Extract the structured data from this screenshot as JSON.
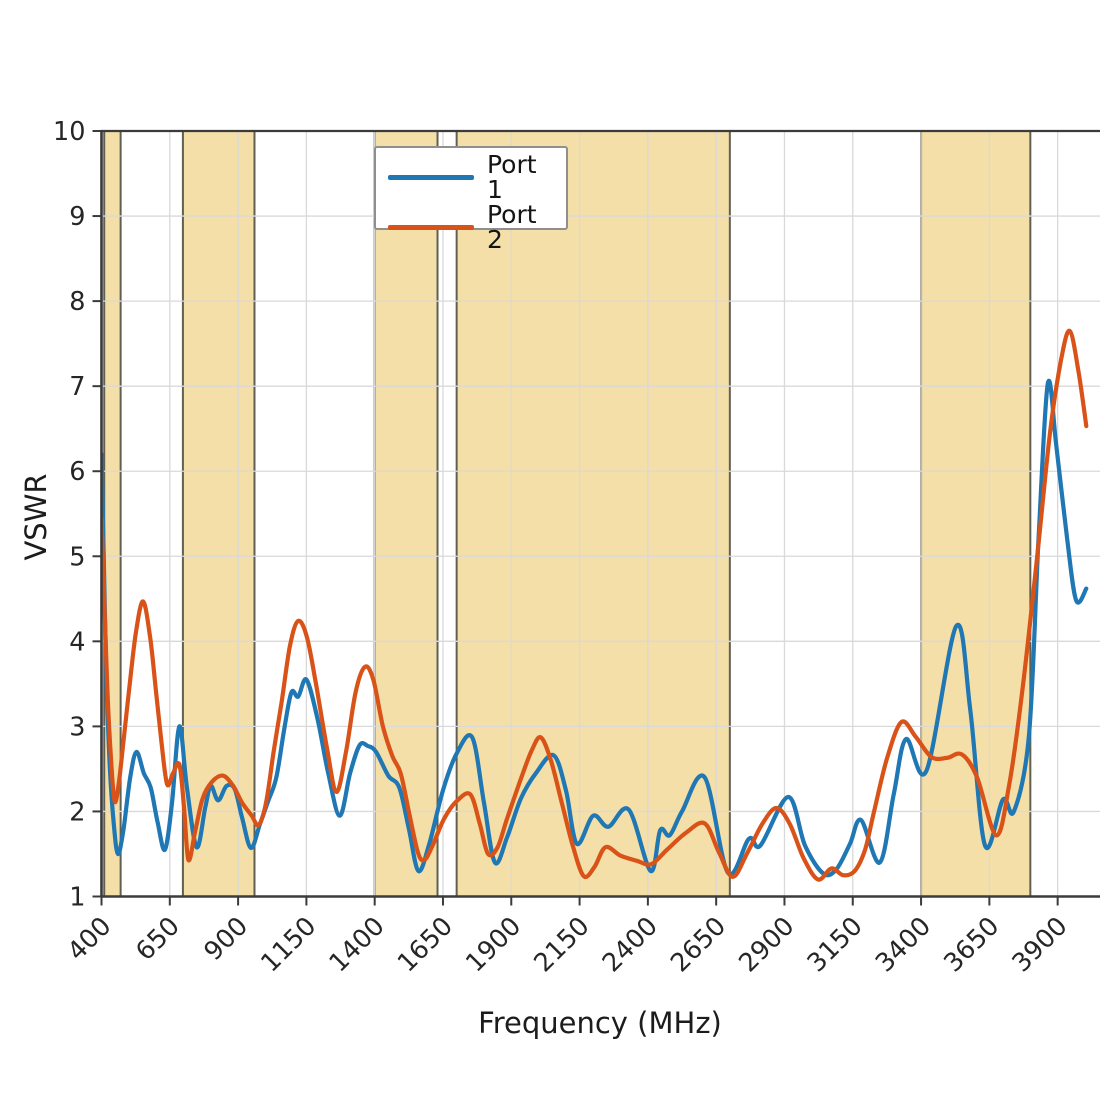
{
  "figure": {
    "xlabel": "Frequency (MHz)",
    "ylabel": "VSWR",
    "background_color": "#ffffff",
    "grid_color": "#d9d9d9",
    "spine_color": "#3b3b3b",
    "tick_label_color": "#262626"
  },
  "legend": {
    "items": [
      {
        "label": "Port 1",
        "color": "#1f77b4"
      },
      {
        "label": "Port 2",
        "color": "#d95319"
      }
    ]
  },
  "chart_data": {
    "type": "line",
    "title": "",
    "xlabel": "Frequency (MHz)",
    "ylabel": "VSWR",
    "xlim": [
      400,
      4055
    ],
    "ylim": [
      1,
      10
    ],
    "xticks": [
      400,
      650,
      900,
      1150,
      1400,
      1650,
      1900,
      2150,
      2400,
      2650,
      2900,
      3150,
      3400,
      3650,
      3900
    ],
    "yticks": [
      1,
      2,
      3,
      4,
      5,
      6,
      7,
      8,
      9,
      10
    ],
    "grid": true,
    "x_tick_rotation_deg": 45,
    "legend_position": "upper center-left",
    "band_color": "#f5dfa8",
    "band_edge_color": "#5f5f54",
    "shaded_bands_mhz": [
      [
        410,
        470
      ],
      [
        698,
        960
      ],
      [
        1400,
        1630
      ],
      [
        1700,
        2700
      ],
      [
        3400,
        3800
      ]
    ],
    "series": [
      {
        "name": "Port 1",
        "color": "#1f77b4",
        "points": [
          [
            400,
            6.2
          ],
          [
            408,
            5.0
          ],
          [
            418,
            3.6
          ],
          [
            430,
            2.55
          ],
          [
            445,
            1.85
          ],
          [
            460,
            1.5
          ],
          [
            480,
            1.78
          ],
          [
            505,
            2.4
          ],
          [
            528,
            2.7
          ],
          [
            555,
            2.45
          ],
          [
            580,
            2.28
          ],
          [
            605,
            1.88
          ],
          [
            632,
            1.55
          ],
          [
            658,
            2.1
          ],
          [
            685,
            3.0
          ],
          [
            712,
            2.3
          ],
          [
            748,
            1.58
          ],
          [
            780,
            2.05
          ],
          [
            800,
            2.3
          ],
          [
            827,
            2.13
          ],
          [
            858,
            2.3
          ],
          [
            888,
            2.26
          ],
          [
            915,
            1.92
          ],
          [
            947,
            1.57
          ],
          [
            980,
            1.85
          ],
          [
            1010,
            2.12
          ],
          [
            1040,
            2.4
          ],
          [
            1068,
            2.95
          ],
          [
            1095,
            3.4
          ],
          [
            1120,
            3.35
          ],
          [
            1150,
            3.55
          ],
          [
            1190,
            3.1
          ],
          [
            1230,
            2.45
          ],
          [
            1272,
            1.95
          ],
          [
            1310,
            2.45
          ],
          [
            1345,
            2.78
          ],
          [
            1375,
            2.77
          ],
          [
            1405,
            2.7
          ],
          [
            1450,
            2.42
          ],
          [
            1490,
            2.28
          ],
          [
            1525,
            1.8
          ],
          [
            1560,
            1.3
          ],
          [
            1600,
            1.62
          ],
          [
            1650,
            2.25
          ],
          [
            1700,
            2.68
          ],
          [
            1757,
            2.87
          ],
          [
            1800,
            2.1
          ],
          [
            1840,
            1.4
          ],
          [
            1885,
            1.7
          ],
          [
            1935,
            2.15
          ],
          [
            1990,
            2.45
          ],
          [
            2055,
            2.66
          ],
          [
            2100,
            2.25
          ],
          [
            2140,
            1.62
          ],
          [
            2200,
            1.95
          ],
          [
            2255,
            1.82
          ],
          [
            2330,
            2.02
          ],
          [
            2410,
            1.3
          ],
          [
            2445,
            1.78
          ],
          [
            2480,
            1.72
          ],
          [
            2525,
            2.0
          ],
          [
            2608,
            2.4
          ],
          [
            2693,
            1.28
          ],
          [
            2770,
            1.68
          ],
          [
            2812,
            1.6
          ],
          [
            2914,
            2.17
          ],
          [
            2975,
            1.6
          ],
          [
            3042,
            1.27
          ],
          [
            3090,
            1.32
          ],
          [
            3140,
            1.62
          ],
          [
            3180,
            1.9
          ],
          [
            3249,
            1.4
          ],
          [
            3300,
            2.2
          ],
          [
            3345,
            2.85
          ],
          [
            3420,
            2.48
          ],
          [
            3529,
            4.18
          ],
          [
            3580,
            3.2
          ],
          [
            3634,
            1.6
          ],
          [
            3700,
            2.14
          ],
          [
            3740,
            2.0
          ],
          [
            3795,
            2.9
          ],
          [
            3830,
            5.2
          ],
          [
            3864,
            7.03
          ],
          [
            3895,
            6.3
          ],
          [
            3935,
            5.2
          ],
          [
            3968,
            4.48
          ],
          [
            4005,
            4.62
          ]
        ]
      },
      {
        "name": "Port 2",
        "color": "#d95319",
        "points": [
          [
            400,
            5.45
          ],
          [
            410,
            4.5
          ],
          [
            422,
            3.4
          ],
          [
            435,
            2.6
          ],
          [
            448,
            2.12
          ],
          [
            462,
            2.3
          ],
          [
            478,
            2.75
          ],
          [
            500,
            3.4
          ],
          [
            525,
            4.08
          ],
          [
            552,
            4.47
          ],
          [
            578,
            4.05
          ],
          [
            600,
            3.4
          ],
          [
            620,
            2.8
          ],
          [
            640,
            2.32
          ],
          [
            662,
            2.45
          ],
          [
            685,
            2.55
          ],
          [
            702,
            2.05
          ],
          [
            718,
            1.43
          ],
          [
            742,
            1.75
          ],
          [
            770,
            2.15
          ],
          [
            805,
            2.35
          ],
          [
            845,
            2.42
          ],
          [
            882,
            2.3
          ],
          [
            915,
            2.1
          ],
          [
            950,
            1.95
          ],
          [
            975,
            1.84
          ],
          [
            1002,
            2.1
          ],
          [
            1030,
            2.7
          ],
          [
            1060,
            3.3
          ],
          [
            1090,
            3.95
          ],
          [
            1120,
            4.24
          ],
          [
            1152,
            4.05
          ],
          [
            1185,
            3.5
          ],
          [
            1225,
            2.75
          ],
          [
            1260,
            2.23
          ],
          [
            1295,
            2.7
          ],
          [
            1330,
            3.4
          ],
          [
            1364,
            3.7
          ],
          [
            1395,
            3.55
          ],
          [
            1430,
            3.0
          ],
          [
            1465,
            2.65
          ],
          [
            1495,
            2.45
          ],
          [
            1525,
            2.0
          ],
          [
            1558,
            1.52
          ],
          [
            1582,
            1.43
          ],
          [
            1612,
            1.6
          ],
          [
            1655,
            1.92
          ],
          [
            1700,
            2.12
          ],
          [
            1750,
            2.2
          ],
          [
            1785,
            1.85
          ],
          [
            1815,
            1.5
          ],
          [
            1850,
            1.58
          ],
          [
            1885,
            1.92
          ],
          [
            1935,
            2.38
          ],
          [
            1975,
            2.72
          ],
          [
            2008,
            2.87
          ],
          [
            2045,
            2.6
          ],
          [
            2085,
            2.1
          ],
          [
            2125,
            1.6
          ],
          [
            2165,
            1.24
          ],
          [
            2205,
            1.35
          ],
          [
            2245,
            1.58
          ],
          [
            2300,
            1.48
          ],
          [
            2360,
            1.42
          ],
          [
            2412,
            1.38
          ],
          [
            2470,
            1.55
          ],
          [
            2540,
            1.75
          ],
          [
            2608,
            1.86
          ],
          [
            2660,
            1.52
          ],
          [
            2711,
            1.23
          ],
          [
            2765,
            1.52
          ],
          [
            2820,
            1.86
          ],
          [
            2871,
            2.04
          ],
          [
            2920,
            1.85
          ],
          [
            2970,
            1.45
          ],
          [
            3023,
            1.2
          ],
          [
            3072,
            1.33
          ],
          [
            3115,
            1.25
          ],
          [
            3157,
            1.3
          ],
          [
            3195,
            1.55
          ],
          [
            3228,
            2.0
          ],
          [
            3275,
            2.62
          ],
          [
            3328,
            3.05
          ],
          [
            3380,
            2.88
          ],
          [
            3438,
            2.64
          ],
          [
            3495,
            2.63
          ],
          [
            3550,
            2.67
          ],
          [
            3605,
            2.4
          ],
          [
            3675,
            1.72
          ],
          [
            3722,
            2.3
          ],
          [
            3770,
            3.4
          ],
          [
            3822,
            4.9
          ],
          [
            3872,
            6.45
          ],
          [
            3912,
            7.3
          ],
          [
            3944,
            7.65
          ],
          [
            3975,
            7.2
          ],
          [
            4005,
            6.53
          ]
        ]
      }
    ]
  }
}
